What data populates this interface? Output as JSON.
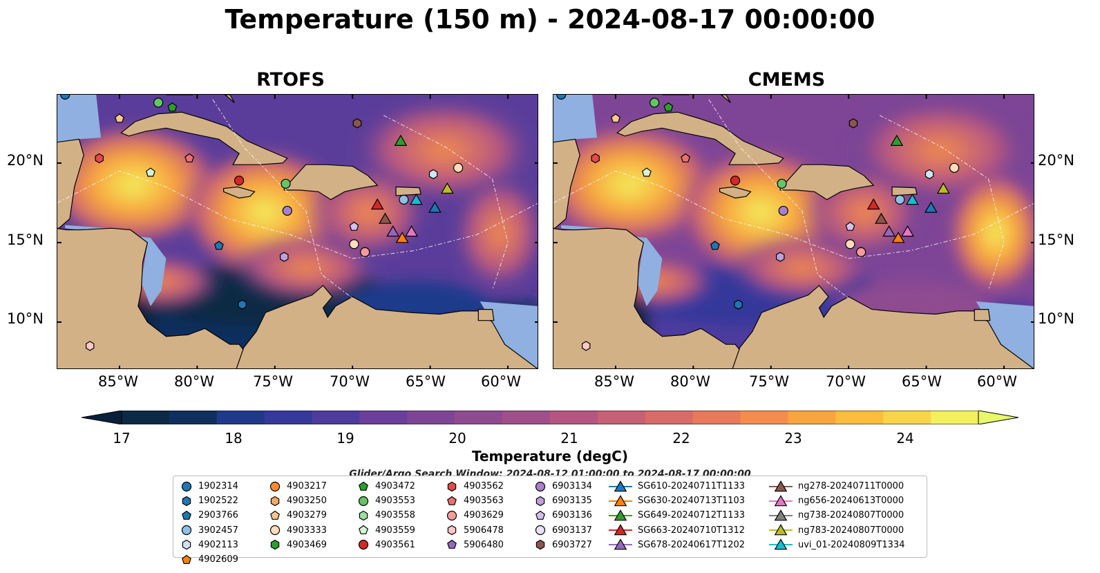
{
  "title": "Temperature (150 m) - 2024-08-17 00:00:00",
  "panels": [
    {
      "title": "RTOFS"
    },
    {
      "title": "CMEMS"
    }
  ],
  "lat_ticks": [
    "20°N",
    "15°N",
    "10°N"
  ],
  "lon_ticks": [
    "85°W",
    "80°W",
    "75°W",
    "70°W",
    "65°W",
    "60°W"
  ],
  "map_extent": {
    "lon_min": -89,
    "lon_max": -58,
    "lat_min": 7,
    "lat_max": 24.3
  },
  "colorbar": {
    "label": "Temperature (degC)",
    "ticks": [
      "17",
      "18",
      "19",
      "20",
      "21",
      "22",
      "23",
      "24"
    ],
    "range": [
      16.5,
      24.5
    ],
    "extend": "both",
    "colors": [
      "#0c2a45",
      "#102f5f",
      "#1f3a8a",
      "#34399b",
      "#4e3b9e",
      "#6a3f9c",
      "#7e4596",
      "#8f4b90",
      "#a14f8a",
      "#b55682",
      "#c75f75",
      "#d86a68",
      "#e8795a",
      "#f48c4c",
      "#f9a53e",
      "#fbbd3b",
      "#f9d34a",
      "#f2f05c"
    ],
    "over_color": "#e8f86a",
    "under_color": "#08203a"
  },
  "legend": {
    "title": "Glider/Argo Search Window: 2024-08-12 01:00:00 to 2024-08-17 00:00:00",
    "columns": [
      [
        {
          "label": "1902314",
          "marker": "circle",
          "color": "#1f77b4"
        },
        {
          "label": "1902522",
          "marker": "hexagon",
          "color": "#1f77b4"
        },
        {
          "label": "2903766",
          "marker": "pentagon",
          "color": "#1f77b4"
        },
        {
          "label": "3902457",
          "marker": "circle",
          "color": "#8fc1e6"
        },
        {
          "label": "4902113",
          "marker": "hexagon",
          "color": "#cfe4f5"
        },
        {
          "label": "4902609",
          "marker": "pentagon",
          "color": "#ff7f0e"
        }
      ],
      [
        {
          "label": "4903217",
          "marker": "circle",
          "color": "#ff8a30"
        },
        {
          "label": "4903250",
          "marker": "hexagon",
          "color": "#ffa860"
        },
        {
          "label": "4903279",
          "marker": "pentagon",
          "color": "#ffc590"
        },
        {
          "label": "4903333",
          "marker": "circle",
          "color": "#ffdcbc"
        },
        {
          "label": "4903469",
          "marker": "hexagon",
          "color": "#2ca02c"
        }
      ],
      [
        {
          "label": "4903472",
          "marker": "pentagon",
          "color": "#2ca02c"
        },
        {
          "label": "4903553",
          "marker": "circle",
          "color": "#63c563"
        },
        {
          "label": "4903558",
          "marker": "hexagon",
          "color": "#9ddf9d"
        },
        {
          "label": "4903559",
          "marker": "pentagon",
          "color": "#d4f4d4"
        },
        {
          "label": "4903561",
          "marker": "circle",
          "color": "#d62728"
        }
      ],
      [
        {
          "label": "4903562",
          "marker": "hexagon",
          "color": "#e34a4a"
        },
        {
          "label": "4903563",
          "marker": "pentagon",
          "color": "#ec6f6f"
        },
        {
          "label": "4903629",
          "marker": "circle",
          "color": "#f59a9a"
        },
        {
          "label": "5906478",
          "marker": "hexagon",
          "color": "#fbc7c7"
        },
        {
          "label": "5906480",
          "marker": "pentagon",
          "color": "#9467bd"
        }
      ],
      [
        {
          "label": "6903134",
          "marker": "circle",
          "color": "#a880cc"
        },
        {
          "label": "6903135",
          "marker": "hexagon",
          "color": "#bf9fdc"
        },
        {
          "label": "6903136",
          "marker": "pentagon",
          "color": "#d6bfec"
        },
        {
          "label": "6903137",
          "marker": "circle",
          "color": "#ebdffa"
        },
        {
          "label": "6903727",
          "marker": "hexagon",
          "color": "#8c564b"
        }
      ],
      [
        {
          "label": "SG610-20240711T1133",
          "marker": "triangle",
          "color": "#1f77b4"
        },
        {
          "label": "SG630-20240713T1103",
          "marker": "triangle",
          "color": "#ff7f0e"
        },
        {
          "label": "SG649-20240712T1133",
          "marker": "triangle",
          "color": "#2ca02c"
        },
        {
          "label": "SG663-20240710T1312",
          "marker": "triangle",
          "color": "#d62728"
        },
        {
          "label": "SG678-20240617T1202",
          "marker": "triangle",
          "color": "#9467bd"
        }
      ],
      [
        {
          "label": "ng278-20240711T0000",
          "marker": "triangle",
          "color": "#8c564b"
        },
        {
          "label": "ng656-20240613T0000",
          "marker": "triangle",
          "color": "#e377c2"
        },
        {
          "label": "ng738-20240807T0000",
          "marker": "triangle",
          "color": "#7f7f7f"
        },
        {
          "label": "ng783-20240807T0000",
          "marker": "triangle",
          "color": "#bcbd22"
        },
        {
          "label": "uvi_01-20240809T1334",
          "marker": "triangle",
          "color": "#17becf"
        }
      ]
    ]
  },
  "observations": [
    {
      "id": "1902314",
      "lon": -88.5,
      "lat": 24.3
    },
    {
      "id": "3902457",
      "lon": -66.7,
      "lat": 17.7
    },
    {
      "id": "4903333",
      "lon": -63.2,
      "lat": 19.7
    },
    {
      "id": "4903333",
      "lon": -69.9,
      "lat": 14.9
    },
    {
      "id": "4902113",
      "lon": -64.8,
      "lat": 19.3
    },
    {
      "id": "4903279",
      "lon": -85.0,
      "lat": 22.8
    },
    {
      "id": "4903472",
      "lon": -81.6,
      "lat": 23.5
    },
    {
      "id": "4903553",
      "lon": -82.5,
      "lat": 23.8
    },
    {
      "id": "4903553",
      "lon": -74.3,
      "lat": 18.7
    },
    {
      "id": "4903559",
      "lon": -83.0,
      "lat": 19.4
    },
    {
      "id": "4903561",
      "lon": -77.3,
      "lat": 18.9
    },
    {
      "id": "4903562",
      "lon": -86.3,
      "lat": 20.3
    },
    {
      "id": "4903563",
      "lon": -80.5,
      "lat": 20.3
    },
    {
      "id": "4903629",
      "lon": -69.2,
      "lat": 14.4
    },
    {
      "id": "5906478",
      "lon": -86.9,
      "lat": 8.5
    },
    {
      "id": "6903134",
      "lon": -74.2,
      "lat": 17.0
    },
    {
      "id": "6903135",
      "lon": -74.4,
      "lat": 14.1
    },
    {
      "id": "6903136",
      "lon": -69.9,
      "lat": 16.0
    },
    {
      "id": "6903727",
      "lon": -69.7,
      "lat": 22.5
    },
    {
      "id": "2903766",
      "lon": -78.6,
      "lat": 14.8
    },
    {
      "id": "1902522",
      "lon": -77.1,
      "lat": 11.1
    },
    {
      "id": "SG649-20240712T1133",
      "lon": -66.9,
      "lat": 21.4
    },
    {
      "id": "SG663-20240710T1312",
      "lon": -68.4,
      "lat": 17.4
    },
    {
      "id": "SG610-20240711T1133",
      "lon": -64.7,
      "lat": 17.2
    },
    {
      "id": "uvi_01-20240809T1334",
      "lon": -65.9,
      "lat": 17.7
    },
    {
      "id": "ng783-20240807T0000",
      "lon": -63.9,
      "lat": 18.4
    },
    {
      "id": "ng278-20240711T0000",
      "lon": -67.9,
      "lat": 16.5
    },
    {
      "id": "SG678-20240617T1202",
      "lon": -67.4,
      "lat": 15.7
    },
    {
      "id": "ng656-20240613T0000",
      "lon": -66.2,
      "lat": 15.7
    },
    {
      "id": "SG630-20240713T1103",
      "lon": -66.8,
      "lat": 15.3
    }
  ]
}
